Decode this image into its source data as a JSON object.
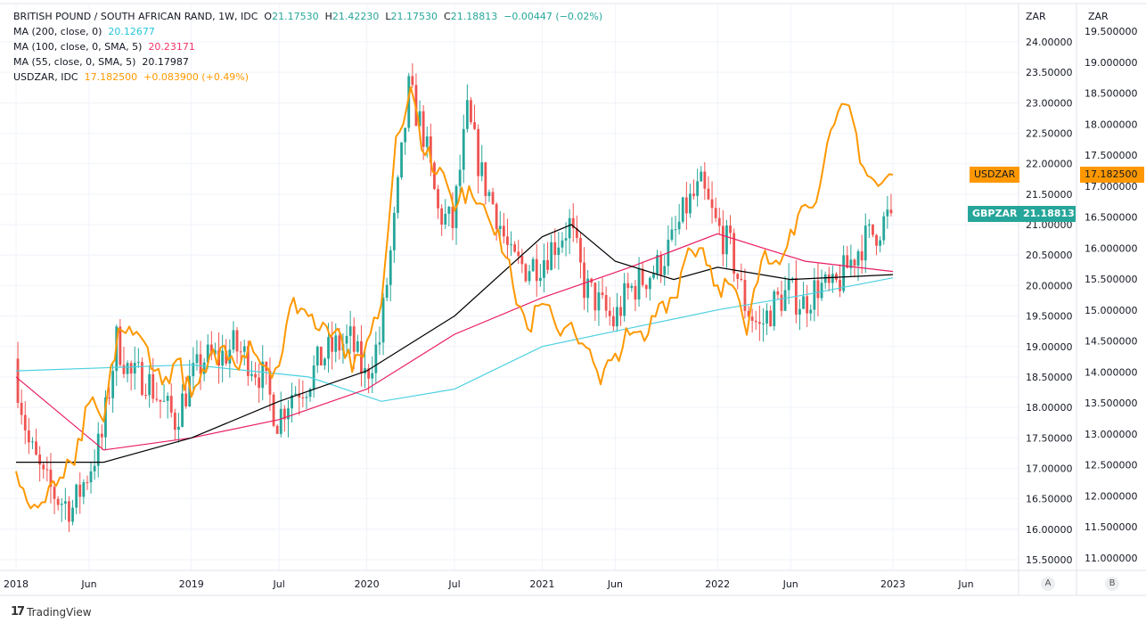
{
  "legend": {
    "main_title": "BRITISH POUND / SOUTH AFRICAN RAND, 1W, IDC",
    "o_label": "O",
    "o": "21.17530",
    "h_label": "H",
    "h": "21.42230",
    "l_label": "L",
    "l": "21.17530",
    "c_label": "C",
    "c": "21.18813",
    "change": "−0.00447 (−0.02%)",
    "ma200_label": "MA (200, close, 0)",
    "ma200_value": "20.12677",
    "ma100_label": "MA (100, close, 0, SMA, 5)",
    "ma100_value": "20.23171",
    "ma55_label": "MA (55, close, 0, SMA, 5)",
    "ma55_value": "20.17987",
    "usdzar_label": "USDZAR, IDC",
    "usdzar_value": "17.182500",
    "usdzar_change": "+0.083900 (+0.49%)"
  },
  "tags": {
    "usdzar_name": "USDZAR",
    "usdzar_price": "17.182500",
    "gbpzar_name": "GBPZAR",
    "gbpzar_price": "21.18813"
  },
  "axis_buttons": {
    "a": "A",
    "b": "B"
  },
  "watermark": "TradingView",
  "colors": {
    "up": "#26a69a",
    "down": "#ef5350",
    "usdzar": "#ff9800",
    "ma200": "#4dd0e1",
    "ma100": "#e91e63",
    "ma55": "#000000"
  },
  "chart_data": {
    "type": "candlestick",
    "title": "BRITISH POUND / SOUTH AFRICAN RAND, 1W, IDC",
    "x_tick_labels": [
      "2018",
      "Jun",
      "2019",
      "Jul",
      "2020",
      "Jul",
      "2021",
      "Jun",
      "2022",
      "Jun",
      "2023",
      "Jun"
    ],
    "x_tick_months": [
      0,
      5,
      12,
      18,
      24,
      30,
      36,
      41,
      48,
      53,
      60,
      65
    ],
    "left_axis": {
      "unit": "ZAR",
      "ylim": [
        15.5,
        24.0
      ],
      "ticks": [
        "24.00000",
        "23.50000",
        "23.00000",
        "22.50000",
        "22.00000",
        "21.50000",
        "21.00000",
        "20.50000",
        "20.00000",
        "19.50000",
        "19.00000",
        "18.50000",
        "18.00000",
        "17.50000",
        "17.00000",
        "16.50000",
        "16.00000",
        "15.50000"
      ]
    },
    "right_axis": {
      "unit": "ZAR",
      "ylim": [
        11.0,
        19.5
      ],
      "ticks": [
        "19.500000",
        "19.000000",
        "18.500000",
        "18.000000",
        "17.500000",
        "17.000000",
        "16.500000",
        "16.000000",
        "15.500000",
        "15.000000",
        "14.500000",
        "14.000000",
        "13.500000",
        "13.000000",
        "12.500000",
        "12.000000",
        "11.500000",
        "11.000000"
      ]
    },
    "gbpzar_monthly_close_from_2018_01": [
      18.7,
      17.4,
      16.8,
      16.5,
      16.35,
      16.9,
      17.5,
      19.1,
      18.5,
      18.5,
      18.1,
      17.8,
      18.4,
      18.8,
      18.8,
      19.0,
      18.8,
      18.5,
      17.8,
      18.25,
      18.4,
      18.8,
      19.0,
      19.1,
      18.5,
      19.1,
      21.0,
      23.2,
      22.5,
      21.2,
      21.0,
      22.8,
      21.8,
      21.2,
      20.4,
      20.3,
      20.4,
      20.7,
      21.0,
      20.0,
      19.7,
      19.4,
      19.9,
      20.1,
      20.3,
      20.7,
      21.3,
      21.6,
      21.0,
      20.6,
      19.7,
      19.3,
      19.7,
      19.9,
      19.7,
      20.0,
      19.9,
      20.3,
      20.7,
      20.9,
      21.18813
    ],
    "usdzar_monthly_from_2018_01": [
      12.4,
      11.8,
      11.9,
      12.3,
      12.5,
      13.5,
      13.2,
      14.7,
      14.6,
      14.4,
      13.8,
      14.2,
      13.6,
      14.0,
      14.4,
      14.1,
      14.5,
      14.1,
      14.1,
      15.2,
      14.9,
      14.8,
      14.7,
      14.0,
      14.5,
      15.1,
      17.8,
      18.6,
      17.5,
      17.3,
      16.6,
      17.0,
      16.7,
      16.3,
      15.4,
      14.7,
      15.1,
      14.7,
      14.8,
      14.4,
      13.8,
      14.3,
      14.6,
      14.5,
      15.1,
      15.2,
      16.0,
      16.0,
      15.4,
      15.4,
      14.6,
      15.8,
      15.8,
      16.3,
      16.7,
      17.0,
      18.0,
      18.3,
      17.3,
      17.0,
      17.1825
    ],
    "ma55": [
      [
        0,
        17.1
      ],
      [
        6,
        17.1
      ],
      [
        12,
        17.5
      ],
      [
        18,
        18.1
      ],
      [
        24,
        18.6
      ],
      [
        30,
        19.5
      ],
      [
        36,
        20.8
      ],
      [
        38,
        21.0
      ],
      [
        41,
        20.4
      ],
      [
        45,
        20.1
      ],
      [
        48,
        20.3
      ],
      [
        53,
        20.1
      ],
      [
        60,
        20.17987
      ]
    ],
    "ma100": [
      [
        0,
        18.5
      ],
      [
        6,
        17.3
      ],
      [
        12,
        17.5
      ],
      [
        18,
        17.8
      ],
      [
        24,
        18.3
      ],
      [
        30,
        19.2
      ],
      [
        36,
        19.8
      ],
      [
        42,
        20.3
      ],
      [
        48,
        20.85
      ],
      [
        54,
        20.4
      ],
      [
        60,
        20.23171
      ]
    ],
    "ma200": [
      [
        0,
        18.6
      ],
      [
        12,
        18.7
      ],
      [
        20,
        18.5
      ],
      [
        25,
        18.1
      ],
      [
        30,
        18.3
      ],
      [
        36,
        19.0
      ],
      [
        42,
        19.3
      ],
      [
        48,
        19.6
      ],
      [
        54,
        19.85
      ],
      [
        60,
        20.12677
      ]
    ]
  }
}
